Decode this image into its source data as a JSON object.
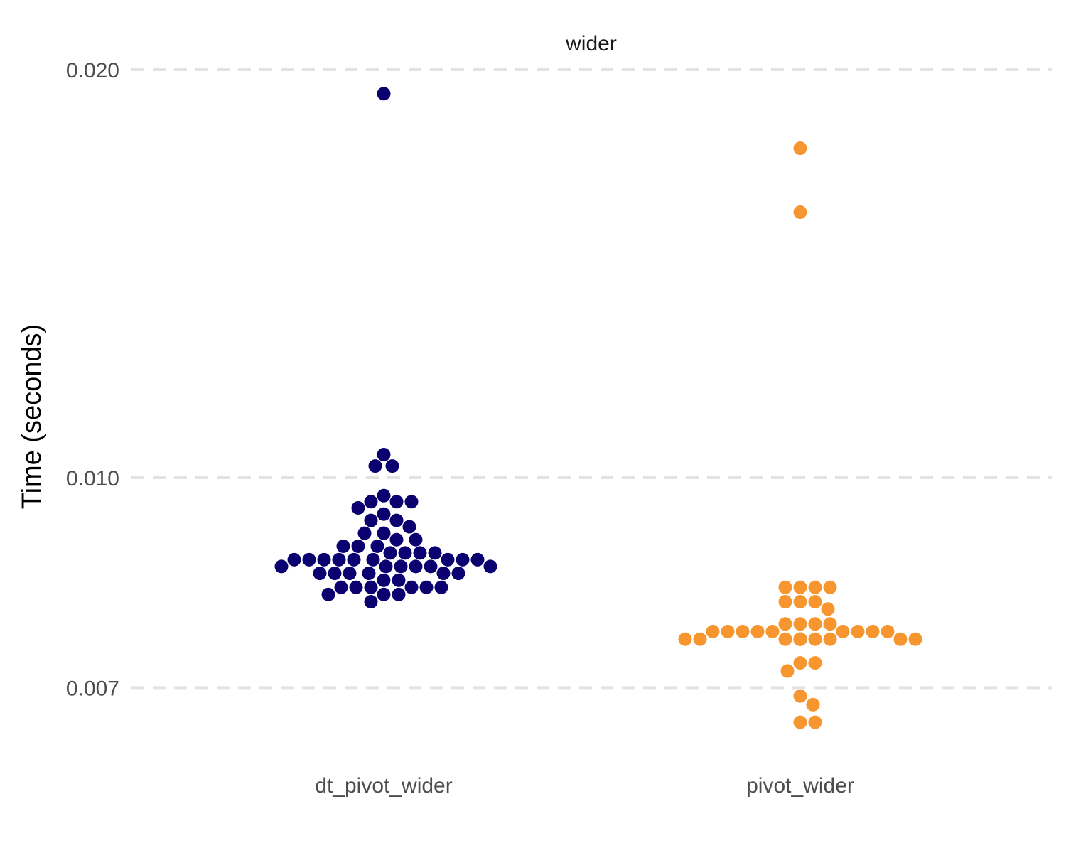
{
  "chart_data": {
    "type": "scatter",
    "title": "wider",
    "xlabel": "",
    "ylabel": "Time (seconds)",
    "y_scale": "log10",
    "ylim": [
      0.0063,
      0.0208
    ],
    "y_ticks": [
      "0.020",
      "0.010",
      "0.007"
    ],
    "y_tick_values": [
      0.02,
      0.01,
      0.007
    ],
    "grid": "horizontal major, dashed",
    "legend": "none",
    "categories": [
      "dt_pivot_wider",
      "pivot_wider"
    ],
    "series": [
      {
        "category": "dt_pivot_wider",
        "color": "#0a0070",
        "values": [
          0.0192,
          0.0104,
          0.0102,
          0.0102,
          0.0097,
          0.0096,
          0.0096,
          0.0096,
          0.0095,
          0.0094,
          0.0093,
          0.0093,
          0.0092,
          0.0091,
          0.0091,
          0.009,
          0.009,
          0.0089,
          0.0089,
          0.0089,
          0.0088,
          0.0088,
          0.0088,
          0.0088,
          0.0087,
          0.0087,
          0.0087,
          0.0087,
          0.0087,
          0.0087,
          0.0087,
          0.0087,
          0.0087,
          0.0086,
          0.0086,
          0.0086,
          0.0086,
          0.0086,
          0.0086,
          0.0085,
          0.0085,
          0.0085,
          0.0085,
          0.0085,
          0.0085,
          0.0084,
          0.0084,
          0.0083,
          0.0083,
          0.0083,
          0.0083,
          0.0083,
          0.0083,
          0.0082,
          0.0082,
          0.0082,
          0.0081
        ]
      },
      {
        "category": "pivot_wider",
        "color": "#f7962f",
        "values": [
          0.0175,
          0.0157,
          0.0083,
          0.0083,
          0.0083,
          0.0083,
          0.0081,
          0.0081,
          0.0081,
          0.008,
          0.0078,
          0.0078,
          0.0078,
          0.0078,
          0.0077,
          0.0077,
          0.0077,
          0.0077,
          0.0077,
          0.0077,
          0.0077,
          0.0077,
          0.0077,
          0.0076,
          0.0076,
          0.0076,
          0.0076,
          0.0076,
          0.0076,
          0.0076,
          0.0076,
          0.0076,
          0.0076,
          0.0076,
          0.0076,
          0.0076,
          0.0076,
          0.0076,
          0.0076,
          0.0076,
          0.0076,
          0.0076,
          0.0076,
          0.0076,
          0.0073,
          0.0073,
          0.0072,
          0.0069,
          0.0068,
          0.0066,
          0.0066
        ]
      }
    ]
  }
}
